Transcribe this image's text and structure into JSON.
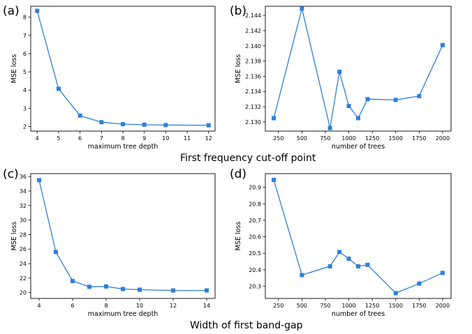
{
  "captions": {
    "row1": "First frequency cut-off point",
    "row2": "Width of first band-gap"
  },
  "panel_labels": [
    "(a)",
    "(b)",
    "(c)",
    "(d)"
  ],
  "colors": {
    "series": "#2f7fd8",
    "axis": "#000000"
  },
  "chart_data": [
    {
      "id": "a",
      "type": "line",
      "xlabel": "maximum tree depth",
      "ylabel": "MSE loss",
      "xlim": [
        3.7,
        12.3
      ],
      "ylim": [
        1.75,
        8.6
      ],
      "xticks": [
        4,
        5,
        6,
        7,
        8,
        9,
        10,
        11,
        12
      ],
      "yticks": [
        2,
        3,
        4,
        5,
        6,
        7,
        8
      ],
      "x": [
        4,
        5,
        6,
        7,
        8,
        9,
        10,
        12
      ],
      "y": [
        8.35,
        4.07,
        2.6,
        2.24,
        2.13,
        2.1,
        2.08,
        2.07
      ],
      "grid": false,
      "marker": "square"
    },
    {
      "id": "b",
      "type": "line",
      "xlabel": "number of trees",
      "ylabel": "MSE loss",
      "xlim": [
        110,
        2090
      ],
      "ylim": [
        2.1288,
        2.1452
      ],
      "xticks": [
        250,
        500,
        750,
        1000,
        1250,
        1500,
        1750,
        2000
      ],
      "yticks": [
        2.13,
        2.132,
        2.134,
        2.136,
        2.138,
        2.14,
        2.142,
        2.144
      ],
      "x": [
        200,
        500,
        800,
        900,
        1000,
        1100,
        1200,
        1500,
        1750,
        2000
      ],
      "y": [
        2.1305,
        2.1449,
        2.1292,
        2.1366,
        2.1321,
        2.1305,
        2.133,
        2.1329,
        2.1334,
        2.1401
      ],
      "grid": false,
      "marker": "square"
    },
    {
      "id": "c",
      "type": "line",
      "xlabel": "maximum tree depth",
      "ylabel": "MSE loss",
      "xlim": [
        3.5,
        14.5
      ],
      "ylim": [
        19.2,
        36.4
      ],
      "xticks": [
        4,
        6,
        8,
        10,
        12,
        14
      ],
      "yticks": [
        20,
        22,
        24,
        26,
        28,
        30,
        32,
        34,
        36
      ],
      "x": [
        4,
        5,
        6,
        7,
        8,
        9,
        10,
        12,
        14
      ],
      "y": [
        35.5,
        25.6,
        21.6,
        20.8,
        20.85,
        20.5,
        20.4,
        20.3,
        20.3
      ],
      "grid": false,
      "marker": "square"
    },
    {
      "id": "d",
      "type": "line",
      "xlabel": "number of trees",
      "ylabel": "MSE loss",
      "xlim": [
        110,
        2090
      ],
      "ylim": [
        20.226,
        20.983
      ],
      "xticks": [
        250,
        500,
        750,
        1000,
        1250,
        1500,
        1750,
        2000
      ],
      "yticks": [
        20.3,
        20.4,
        20.5,
        20.6,
        20.7,
        20.8,
        20.9
      ],
      "x": [
        200,
        500,
        800,
        900,
        1000,
        1100,
        1200,
        1500,
        1750,
        2000
      ],
      "y": [
        20.945,
        20.368,
        20.421,
        20.508,
        20.467,
        20.421,
        20.43,
        20.258,
        20.316,
        20.381
      ],
      "grid": false,
      "marker": "square"
    }
  ]
}
